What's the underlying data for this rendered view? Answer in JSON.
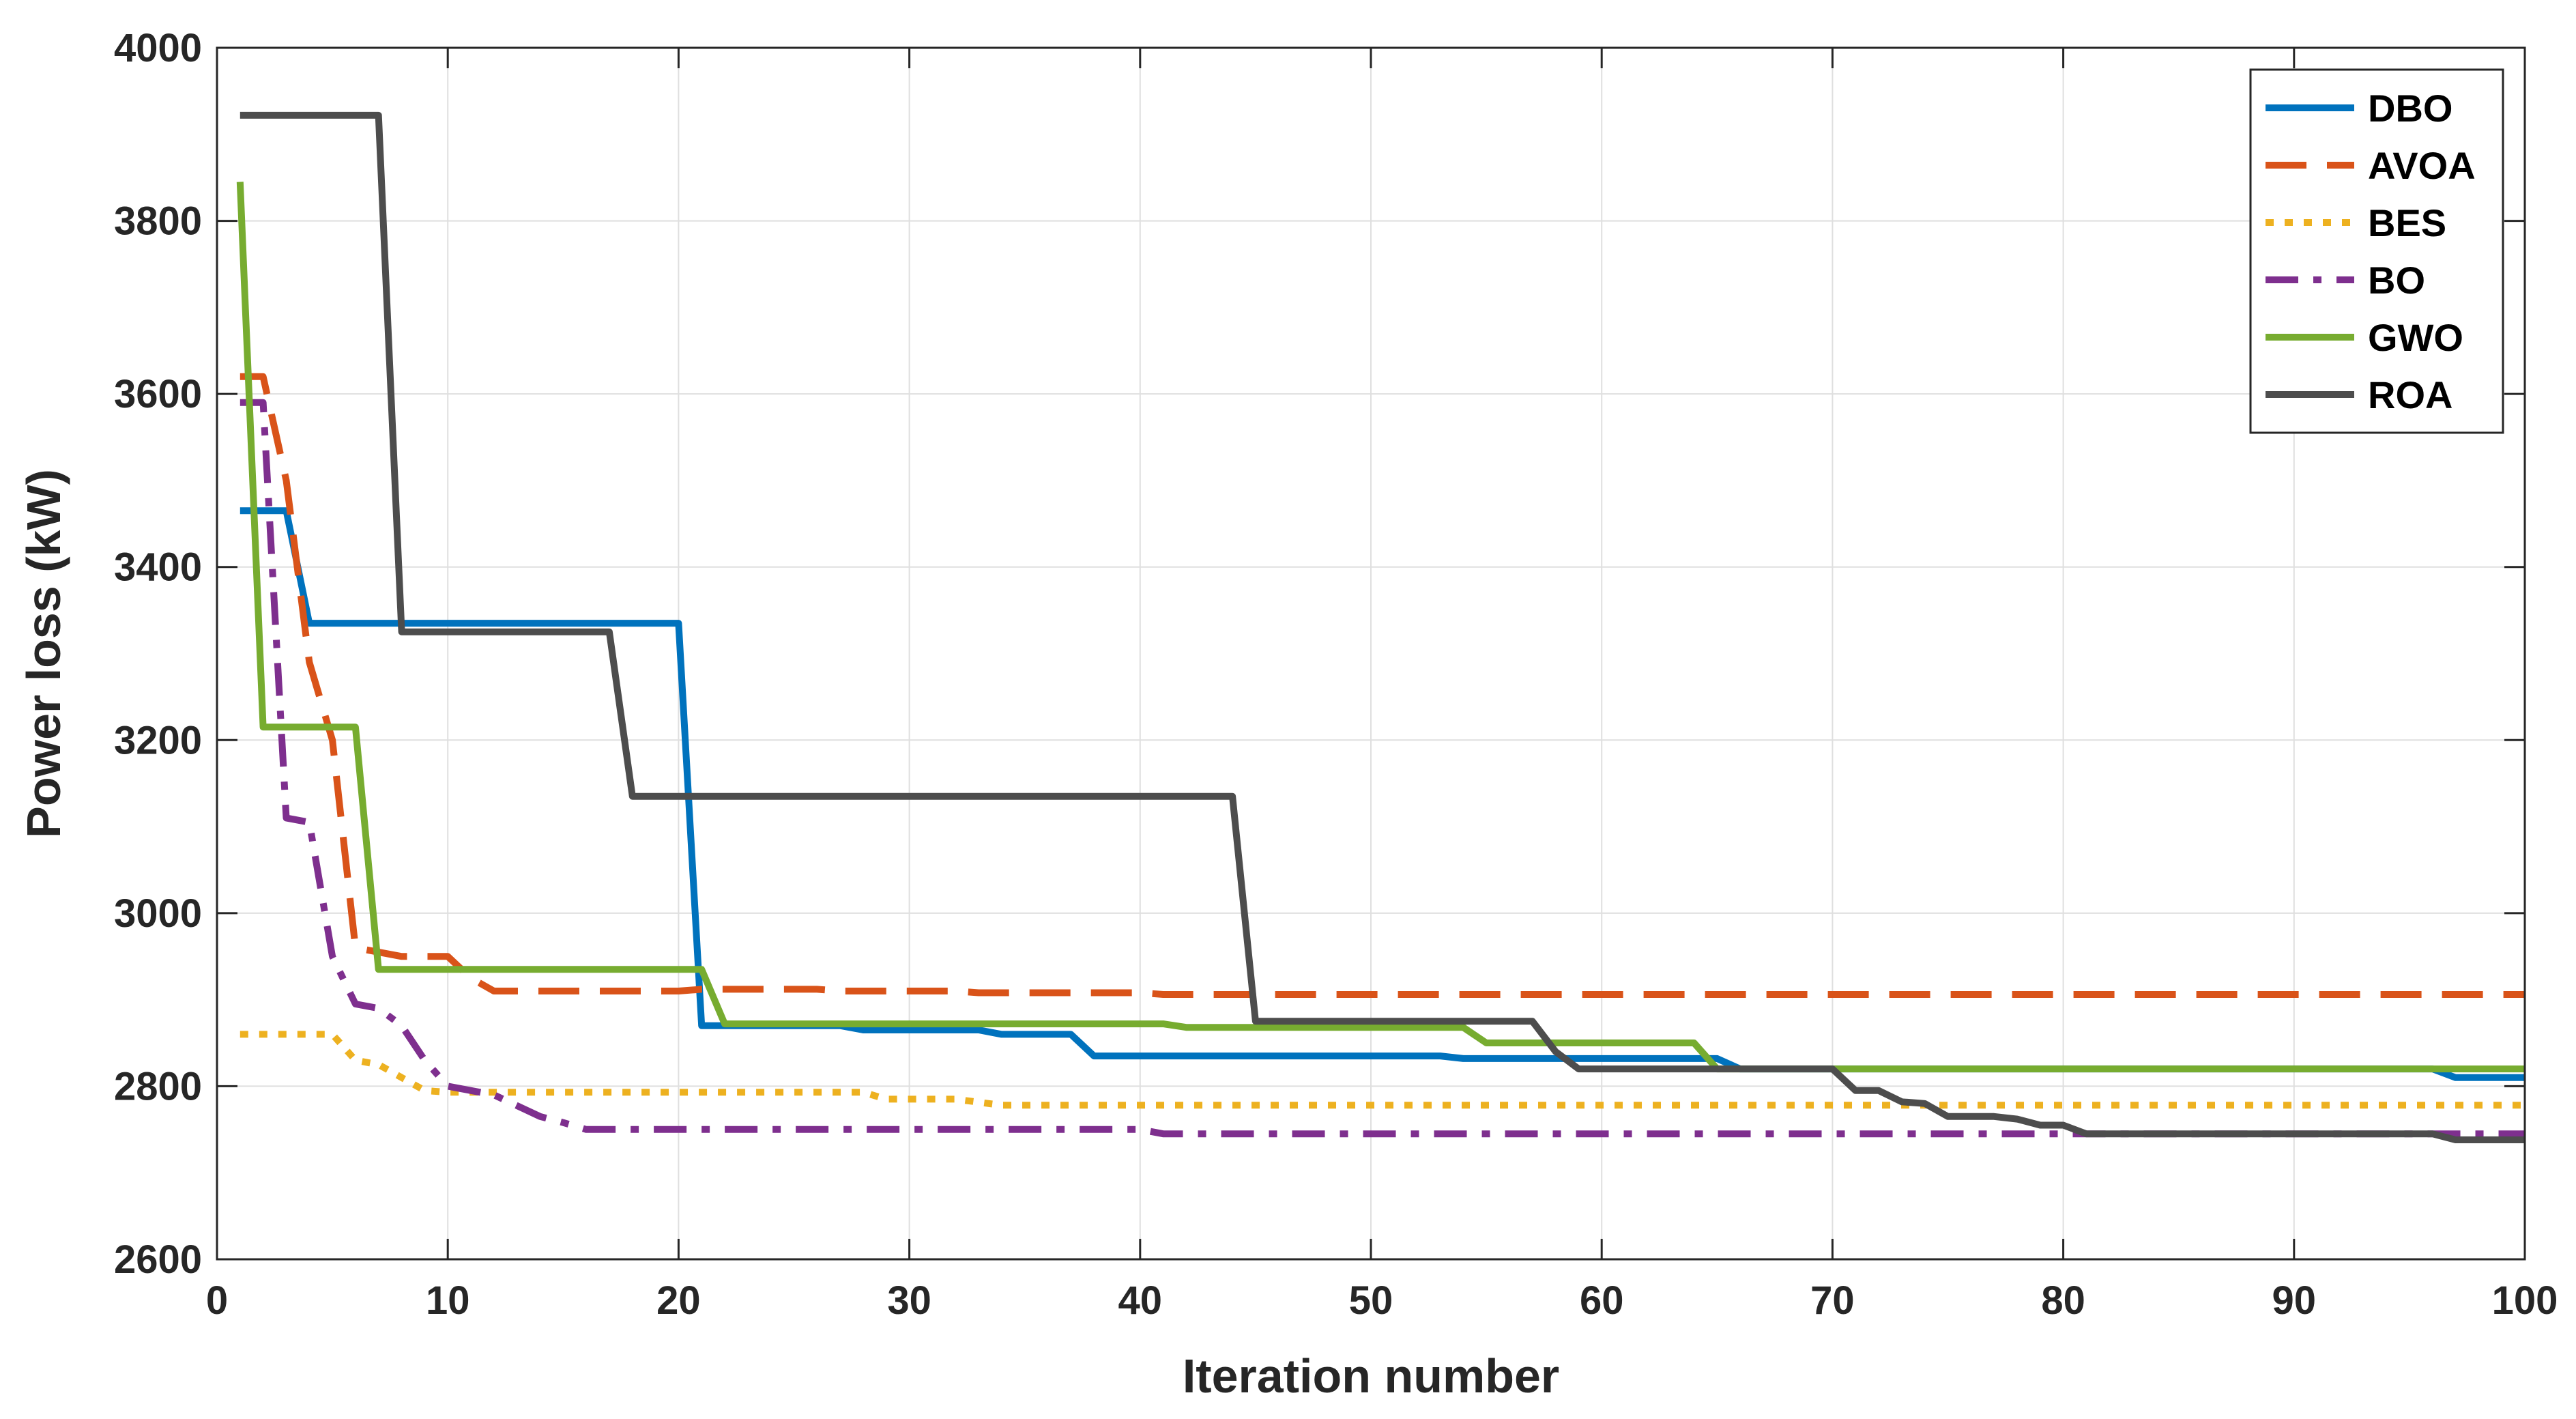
{
  "chart_data": {
    "type": "line",
    "title": "",
    "xlabel": "Iteration number",
    "ylabel": "Power loss (kW)",
    "xlim": [
      0,
      100
    ],
    "ylim": [
      2600,
      4000
    ],
    "xticks": [
      0,
      10,
      20,
      30,
      40,
      50,
      60,
      70,
      80,
      90,
      100
    ],
    "yticks": [
      2600,
      2800,
      3000,
      3200,
      3400,
      3600,
      3800,
      4000
    ],
    "xtick_labels": [
      "0",
      "10",
      "20",
      "30",
      "40",
      "50",
      "60",
      "70",
      "80",
      "90",
      "100"
    ],
    "ytick_labels": [
      "2600",
      "2800",
      "3000",
      "3200",
      "3400",
      "3600",
      "3800",
      "4000"
    ],
    "grid": true,
    "legend_position": "top-right",
    "series": [
      {
        "name": "DBO",
        "color": "#0072BD",
        "style": "solid",
        "points": [
          [
            1,
            3465
          ],
          [
            3,
            3465
          ],
          [
            4,
            3335
          ],
          [
            20,
            3335
          ],
          [
            21,
            2870
          ],
          [
            27,
            2870
          ],
          [
            28,
            2865
          ],
          [
            33,
            2865
          ],
          [
            34,
            2860
          ],
          [
            37,
            2860
          ],
          [
            38,
            2835
          ],
          [
            53,
            2835
          ],
          [
            54,
            2832
          ],
          [
            65,
            2832
          ],
          [
            66,
            2820
          ],
          [
            96,
            2820
          ],
          [
            97,
            2810
          ],
          [
            100,
            2810
          ]
        ]
      },
      {
        "name": "AVOA",
        "color": "#D95319",
        "style": "dashed",
        "points": [
          [
            1,
            3620
          ],
          [
            2,
            3620
          ],
          [
            3,
            3500
          ],
          [
            4,
            3290
          ],
          [
            5,
            3200
          ],
          [
            6,
            2960
          ],
          [
            8,
            2950
          ],
          [
            10,
            2950
          ],
          [
            11,
            2925
          ],
          [
            12,
            2910
          ],
          [
            20,
            2910
          ],
          [
            21,
            2912
          ],
          [
            26,
            2912
          ],
          [
            27,
            2910
          ],
          [
            32,
            2910
          ],
          [
            33,
            2908
          ],
          [
            40,
            2908
          ],
          [
            41,
            2906
          ],
          [
            100,
            2906
          ]
        ]
      },
      {
        "name": "BES",
        "color": "#EDB120",
        "style": "dotted",
        "points": [
          [
            1,
            2860
          ],
          [
            5,
            2860
          ],
          [
            6,
            2830
          ],
          [
            7,
            2825
          ],
          [
            9,
            2795
          ],
          [
            10,
            2793
          ],
          [
            28,
            2793
          ],
          [
            29,
            2785
          ],
          [
            32,
            2785
          ],
          [
            34,
            2778
          ],
          [
            100,
            2778
          ]
        ]
      },
      {
        "name": "BO",
        "color": "#7E2F8E",
        "style": "dashdot",
        "points": [
          [
            1,
            3590
          ],
          [
            2,
            3590
          ],
          [
            3,
            3110
          ],
          [
            4,
            3105
          ],
          [
            5,
            2950
          ],
          [
            6,
            2895
          ],
          [
            7,
            2890
          ],
          [
            8,
            2870
          ],
          [
            9,
            2830
          ],
          [
            10,
            2800
          ],
          [
            12,
            2790
          ],
          [
            14,
            2765
          ],
          [
            15,
            2758
          ],
          [
            16,
            2750
          ],
          [
            40,
            2750
          ],
          [
            41,
            2745
          ],
          [
            100,
            2745
          ]
        ]
      },
      {
        "name": "GWO",
        "color": "#77AC30",
        "style": "solid",
        "points": [
          [
            1,
            3845
          ],
          [
            2,
            3215
          ],
          [
            6,
            3215
          ],
          [
            7,
            2935
          ],
          [
            21,
            2935
          ],
          [
            22,
            2872
          ],
          [
            41,
            2872
          ],
          [
            42,
            2868
          ],
          [
            54,
            2868
          ],
          [
            55,
            2850
          ],
          [
            64,
            2850
          ],
          [
            65,
            2820
          ],
          [
            100,
            2820
          ]
        ]
      },
      {
        "name": "ROA",
        "color": "#4D4D4D",
        "style": "solid",
        "points": [
          [
            1,
            3922
          ],
          [
            7,
            3922
          ],
          [
            8,
            3325
          ],
          [
            17,
            3325
          ],
          [
            18,
            3135
          ],
          [
            44,
            3135
          ],
          [
            45,
            2875
          ],
          [
            57,
            2875
          ],
          [
            58,
            2840
          ],
          [
            59,
            2820
          ],
          [
            70,
            2820
          ],
          [
            71,
            2795
          ],
          [
            72,
            2795
          ],
          [
            73,
            2782
          ],
          [
            74,
            2780
          ],
          [
            75,
            2765
          ],
          [
            77,
            2765
          ],
          [
            78,
            2762
          ],
          [
            79,
            2755
          ],
          [
            80,
            2755
          ],
          [
            81,
            2745
          ],
          [
            96,
            2745
          ],
          [
            97,
            2738
          ],
          [
            100,
            2738
          ]
        ]
      }
    ]
  }
}
